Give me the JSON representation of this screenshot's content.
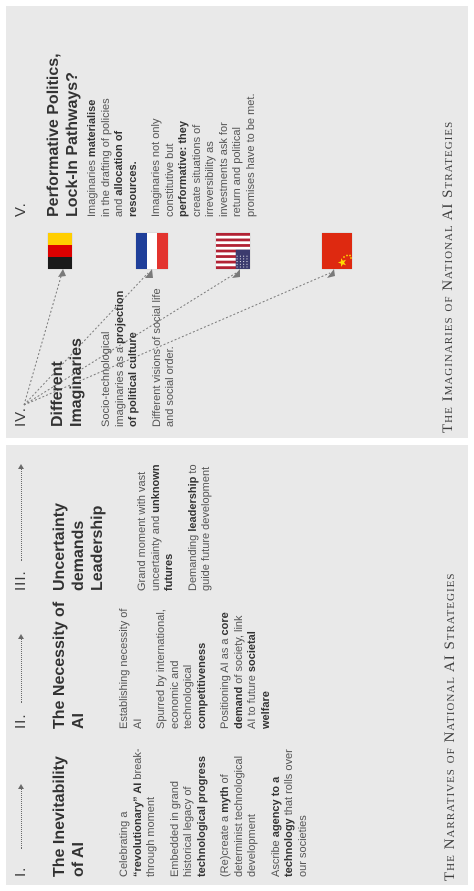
{
  "captions": {
    "left": "The Narratives of National AI Strategies",
    "right": "The Imaginaries of National AI Strategies"
  },
  "columns": [
    {
      "numeral": "I.",
      "title": "The Inevitability of AI",
      "paragraphs": [
        [
          {
            "t": "Celebrating a "
          },
          {
            "t": "“revolutionary” AI",
            "b": true
          },
          {
            "t": " break-through moment"
          }
        ],
        [
          {
            "t": "Embedded in grand historical legacy of "
          },
          {
            "t": "technological progress",
            "b": true
          }
        ],
        [
          {
            "t": "(Re)create a "
          },
          {
            "t": "myth",
            "b": true
          },
          {
            "t": " of determinist technological development"
          }
        ],
        [
          {
            "t": "Ascribe "
          },
          {
            "t": "agency to a technology",
            "b": true
          },
          {
            "t": " that rolls over our societies"
          }
        ]
      ]
    },
    {
      "numeral": "II.",
      "title": "The Necessity of AI",
      "paragraphs": [
        [
          {
            "t": "Establishing necessity of AI"
          }
        ],
        [
          {
            "t": "Spurred by international, economic and technological "
          },
          {
            "t": "competitiveness",
            "b": true
          }
        ],
        [
          {
            "t": "Positioning AI as a "
          },
          {
            "t": "core demand",
            "b": true
          },
          {
            "t": " of society, link AI to future "
          },
          {
            "t": "societal welfare",
            "b": true
          }
        ]
      ]
    },
    {
      "numeral": "III.",
      "title": "Uncertainty demands Leadership",
      "paragraphs": [
        [
          {
            "t": "Grand moment with vast uncertainty and "
          },
          {
            "t": "unknown futures",
            "b": true
          }
        ],
        [
          {
            "t": "Demanding "
          },
          {
            "t": "leadership",
            "b": true
          },
          {
            "t": " to guide future development"
          }
        ]
      ]
    },
    {
      "numeral": "IV.",
      "title": "Different Imaginaries",
      "paragraphs": [
        [
          {
            "t": "Socio-technological imaginaries as a "
          },
          {
            "t": "projection of political culture",
            "b": true
          }
        ],
        [
          {
            "t": "Different visions of social life and social order."
          }
        ]
      ]
    },
    {
      "numeral": "V.",
      "title": "Performative Politics, Lock-In Pathways?",
      "paragraphs": [
        [
          {
            "t": "Imaginaries "
          },
          {
            "t": "materialise",
            "b": true
          },
          {
            "t": " in the drafting of policies and "
          },
          {
            "t": "allocation of resources.",
            "b": true
          }
        ],
        [
          {
            "t": "Imaginaries not only constitutive but "
          },
          {
            "t": "performative: they",
            "b": true
          },
          {
            "t": " create situations of irreversibility as investments ask for return and political promises have to be met."
          }
        ]
      ]
    }
  ],
  "flags": [
    {
      "name": "germany-flag",
      "icon": "flag-germany",
      "colors": [
        "#1a1a1a",
        "#dd0000",
        "#ffce00"
      ]
    },
    {
      "name": "france-flag",
      "icon": "flag-france",
      "colors": [
        "#1f3f9a",
        "#ffffff",
        "#e3342f"
      ]
    },
    {
      "name": "usa-flag",
      "icon": "flag-usa",
      "colors": [
        "#b22234",
        "#ffffff",
        "#3c3b6e"
      ]
    },
    {
      "name": "china-flag",
      "icon": "flag-china",
      "colors": [
        "#de2910",
        "#ffde00"
      ]
    }
  ]
}
